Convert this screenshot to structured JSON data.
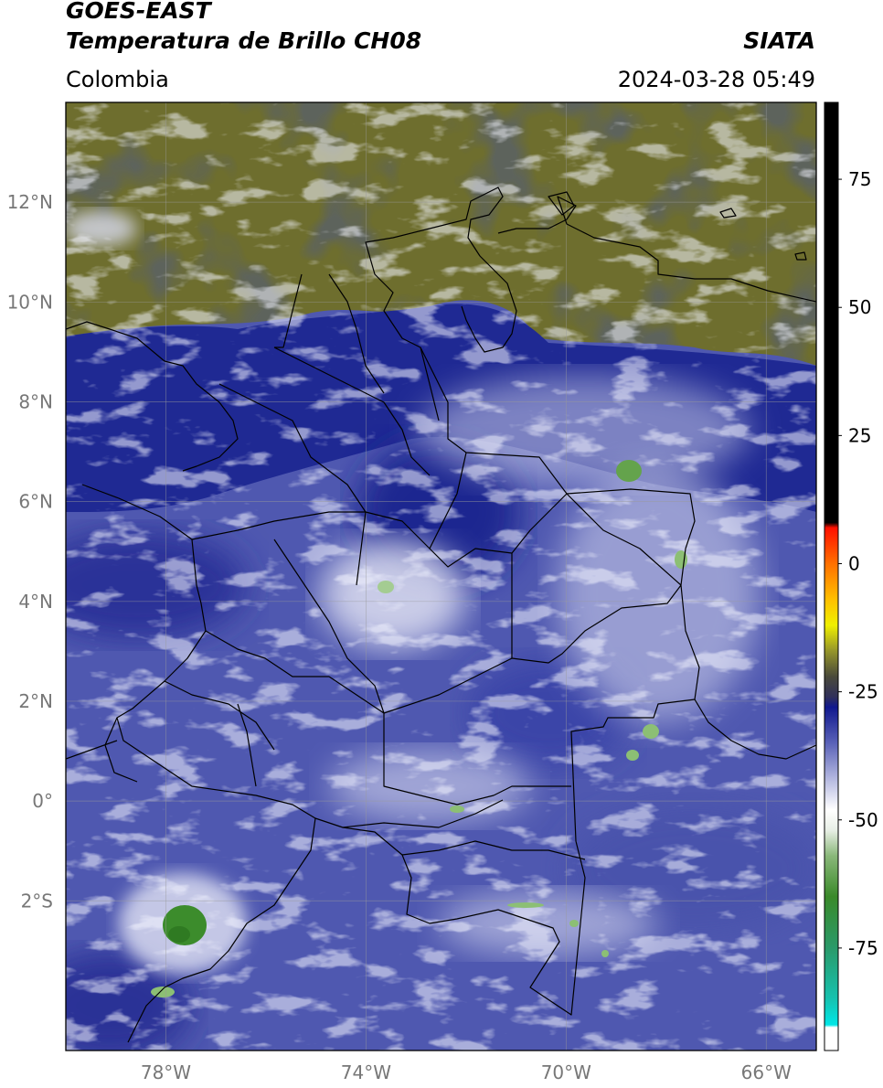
{
  "header": {
    "satellite": "GOES-EAST",
    "product": "Temperatura de Brillo CH08",
    "region": "Colombia",
    "institution": "SIATA",
    "datetime": "2024-03-28 05:49"
  },
  "map": {
    "lon_range": [
      -80,
      -65
    ],
    "lat_range": [
      -5,
      14
    ],
    "graticule": true,
    "lat_ticks": [
      {
        "value": 12,
        "label": "12°N"
      },
      {
        "value": 10,
        "label": "10°N"
      },
      {
        "value": 8,
        "label": "8°N"
      },
      {
        "value": 6,
        "label": "6°N"
      },
      {
        "value": 4,
        "label": "4°N"
      },
      {
        "value": 2,
        "label": "2°N"
      },
      {
        "value": 0,
        "label": "0°"
      },
      {
        "value": -2,
        "label": "2°S"
      }
    ],
    "lon_ticks": [
      {
        "value": -78,
        "label": "78°W"
      },
      {
        "value": -74,
        "label": "74°W"
      },
      {
        "value": -70,
        "label": "70°W"
      },
      {
        "value": -66,
        "label": "66°W"
      }
    ]
  },
  "colorbar": {
    "range": [
      -95,
      90
    ],
    "ticks": [
      {
        "value": 75,
        "label": "75"
      },
      {
        "value": 50,
        "label": "50"
      },
      {
        "value": 25,
        "label": "25"
      },
      {
        "value": 0,
        "label": "0"
      },
      {
        "value": -25,
        "label": "-25"
      },
      {
        "value": -50,
        "label": "-50"
      },
      {
        "value": -75,
        "label": "-75"
      }
    ],
    "stops": [
      {
        "value": -95,
        "color": "#ffffff"
      },
      {
        "value": -90.5,
        "color": "#ffffff"
      },
      {
        "value": -90,
        "color": "#00e6e6"
      },
      {
        "value": -85,
        "color": "#16c2b0"
      },
      {
        "value": -75,
        "color": "#2a9a6a"
      },
      {
        "value": -65,
        "color": "#3a8a2a"
      },
      {
        "value": -57,
        "color": "#8ab87a"
      },
      {
        "value": -52,
        "color": "#e8efe6"
      },
      {
        "value": -48,
        "color": "#ffffff"
      },
      {
        "value": -42,
        "color": "#b4b8e0"
      },
      {
        "value": -35,
        "color": "#5a62b8"
      },
      {
        "value": -28,
        "color": "#10188e"
      },
      {
        "value": -26,
        "color": "#30305a"
      },
      {
        "value": -22,
        "color": "#4a4a3a"
      },
      {
        "value": -17,
        "color": "#96962a"
      },
      {
        "value": -12,
        "color": "#f0f000"
      },
      {
        "value": -7,
        "color": "#ffc000"
      },
      {
        "value": 0,
        "color": "#ff7000"
      },
      {
        "value": 7,
        "color": "#ff1000"
      },
      {
        "value": 8,
        "color": "#000000"
      },
      {
        "value": 90,
        "color": "#000000"
      }
    ]
  },
  "colors": {
    "dry_high": "#73732c",
    "moist": "#1d2790",
    "mid": "#4f58b0",
    "cloud": "#c7cbe9",
    "cold_top": "#3a8a2a"
  }
}
